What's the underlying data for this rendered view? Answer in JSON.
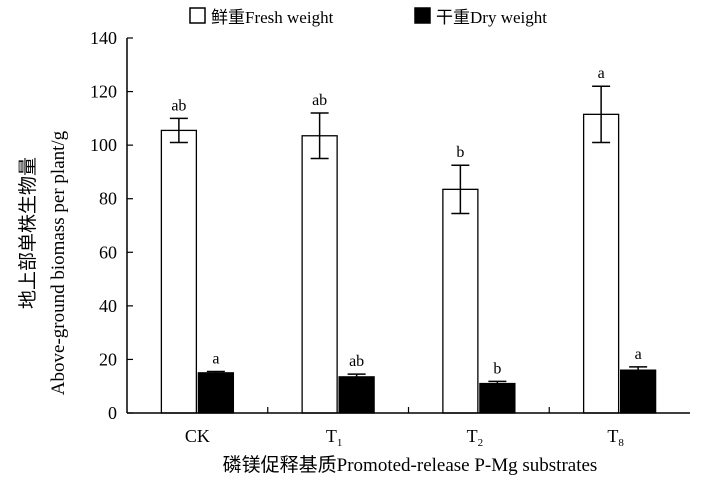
{
  "chart_data": {
    "type": "bar",
    "categories": [
      "CK",
      "T1",
      "T2",
      "T8"
    ],
    "category_display": [
      {
        "main": "CK",
        "sub": ""
      },
      {
        "main": "T",
        "sub": "1"
      },
      {
        "main": "T",
        "sub": "2"
      },
      {
        "main": "T",
        "sub": "8"
      }
    ],
    "series": [
      {
        "name": "鲜重Fresh weight",
        "values": [
          105.5,
          103.5,
          83.5,
          111.5
        ],
        "errors": [
          4.5,
          8.5,
          9.0,
          10.5
        ],
        "letters": [
          "ab",
          "ab",
          "b",
          "a"
        ],
        "fill": "#ffffff"
      },
      {
        "name": "干重Dry weight",
        "values": [
          15.0,
          13.5,
          11.0,
          16.0
        ],
        "errors": [
          0.5,
          1.0,
          0.8,
          1.2
        ],
        "letters": [
          "a",
          "ab",
          "b",
          "a"
        ],
        "fill": "#000000"
      }
    ],
    "ylabel_cn": "地上部单株生物量",
    "ylabel_en": "Above-ground biomass per plant/g",
    "xlabel": "磷镁促释基质Promoted-release P-Mg substrates",
    "ylim": [
      0,
      140
    ],
    "yticks": [
      0,
      20,
      40,
      60,
      80,
      100,
      120,
      140
    ],
    "grid": false,
    "legend_position": "top"
  }
}
